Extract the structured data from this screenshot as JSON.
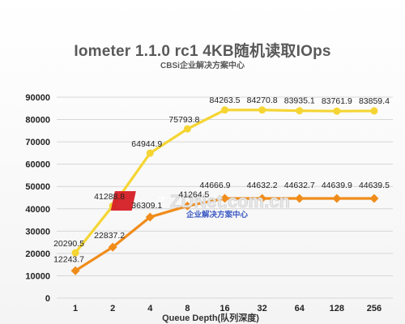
{
  "chart_data": {
    "type": "line",
    "title": "Iometer 1.1.0 rc1 4KB随机读取IOps",
    "subtitle": "CBSi企业解决方案中心",
    "xlabel": "Queue Depth(队列深度)",
    "ylabel": "",
    "categories": [
      "1",
      "2",
      "4",
      "8",
      "16",
      "32",
      "64",
      "128",
      "256"
    ],
    "ylim": [
      0,
      90000
    ],
    "yticks": [
      0,
      10000,
      20000,
      30000,
      40000,
      50000,
      60000,
      70000,
      80000,
      90000
    ],
    "grid": true,
    "legend": "none",
    "series": [
      {
        "color": "#f5d533",
        "marker": "circle",
        "values": [
          20290.5,
          41288.8,
          64944.9,
          75793.8,
          84263.5,
          84270.8,
          83935.1,
          83761.9,
          83859.4
        ],
        "labels": [
          "20290.5",
          "41288.8",
          "64944.9",
          "75793.8",
          "84263.5",
          "84270.8",
          "83935.1",
          "83761.9",
          "83859.4"
        ]
      },
      {
        "color": "#f08c1a",
        "marker": "diamond",
        "values": [
          12243.7,
          22837.2,
          36309.1,
          41264.5,
          44666.9,
          44632.2,
          44632.7,
          44639.9,
          44639.5
        ],
        "labels": [
          "12243.7",
          "22837.2",
          "36309.1",
          "41264.5",
          "44666.9",
          "44632.2",
          "44632.7",
          "44639.9",
          "44639.5"
        ]
      }
    ]
  },
  "watermark": {
    "logo_text": "ZDNet.com.cn",
    "caption": "企业解决方案中心"
  }
}
